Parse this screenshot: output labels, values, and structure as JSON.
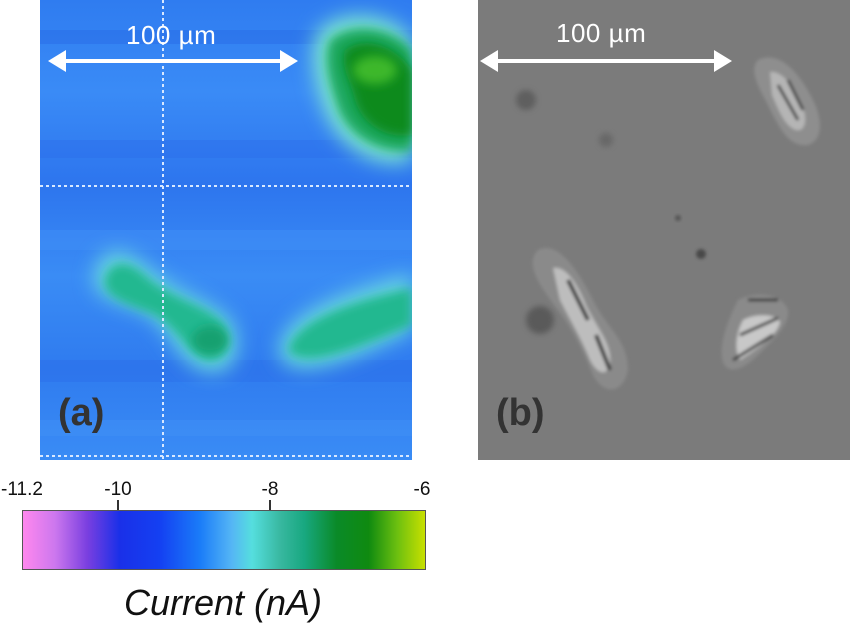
{
  "panel_a": {
    "label": "(a)",
    "scale_bar_text": "100 µm"
  },
  "panel_b": {
    "label": "(b)",
    "scale_bar_text": "100 µm"
  },
  "colorbar": {
    "ticks": [
      "-11.2",
      "-10",
      "-8",
      "-6"
    ],
    "title": "Current (nA)",
    "colors": [
      "#ff88ee",
      "#1a30e8",
      "#55dede",
      "#0f8a10",
      "#c8e000"
    ]
  }
}
